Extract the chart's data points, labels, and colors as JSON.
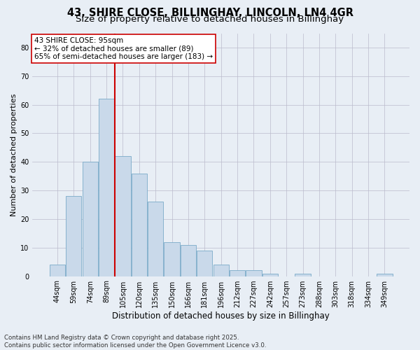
{
  "title": "43, SHIRE CLOSE, BILLINGHAY, LINCOLN, LN4 4GR",
  "subtitle": "Size of property relative to detached houses in Billinghay",
  "xlabel": "Distribution of detached houses by size in Billinghay",
  "ylabel": "Number of detached properties",
  "bar_labels": [
    "44sqm",
    "59sqm",
    "74sqm",
    "89sqm",
    "105sqm",
    "120sqm",
    "135sqm",
    "150sqm",
    "166sqm",
    "181sqm",
    "196sqm",
    "212sqm",
    "227sqm",
    "242sqm",
    "257sqm",
    "273sqm",
    "288sqm",
    "303sqm",
    "318sqm",
    "334sqm",
    "349sqm"
  ],
  "bar_values": [
    4,
    28,
    40,
    62,
    42,
    36,
    26,
    12,
    11,
    9,
    4,
    2,
    2,
    1,
    0,
    1,
    0,
    0,
    0,
    0,
    1
  ],
  "bar_color": "#c9d9ea",
  "bar_edge_color": "#7aaac8",
  "vline_x": 3.5,
  "vline_color": "#cc0000",
  "annotation_text": "43 SHIRE CLOSE: 95sqm\n← 32% of detached houses are smaller (89)\n65% of semi-detached houses are larger (183) →",
  "annotation_box_color": "#ffffff",
  "annotation_box_edge": "#cc0000",
  "ylim": [
    0,
    85
  ],
  "yticks": [
    0,
    10,
    20,
    30,
    40,
    50,
    60,
    70,
    80
  ],
  "grid_color": "#bbbbcc",
  "bg_color": "#e8eef5",
  "footnote": "Contains HM Land Registry data © Crown copyright and database right 2025.\nContains public sector information licensed under the Open Government Licence v3.0.",
  "title_fontsize": 10.5,
  "subtitle_fontsize": 9.5,
  "xlabel_fontsize": 8.5,
  "ylabel_fontsize": 8.0,
  "tick_fontsize": 7.0,
  "annot_fontsize": 7.5,
  "footnote_fontsize": 6.2
}
